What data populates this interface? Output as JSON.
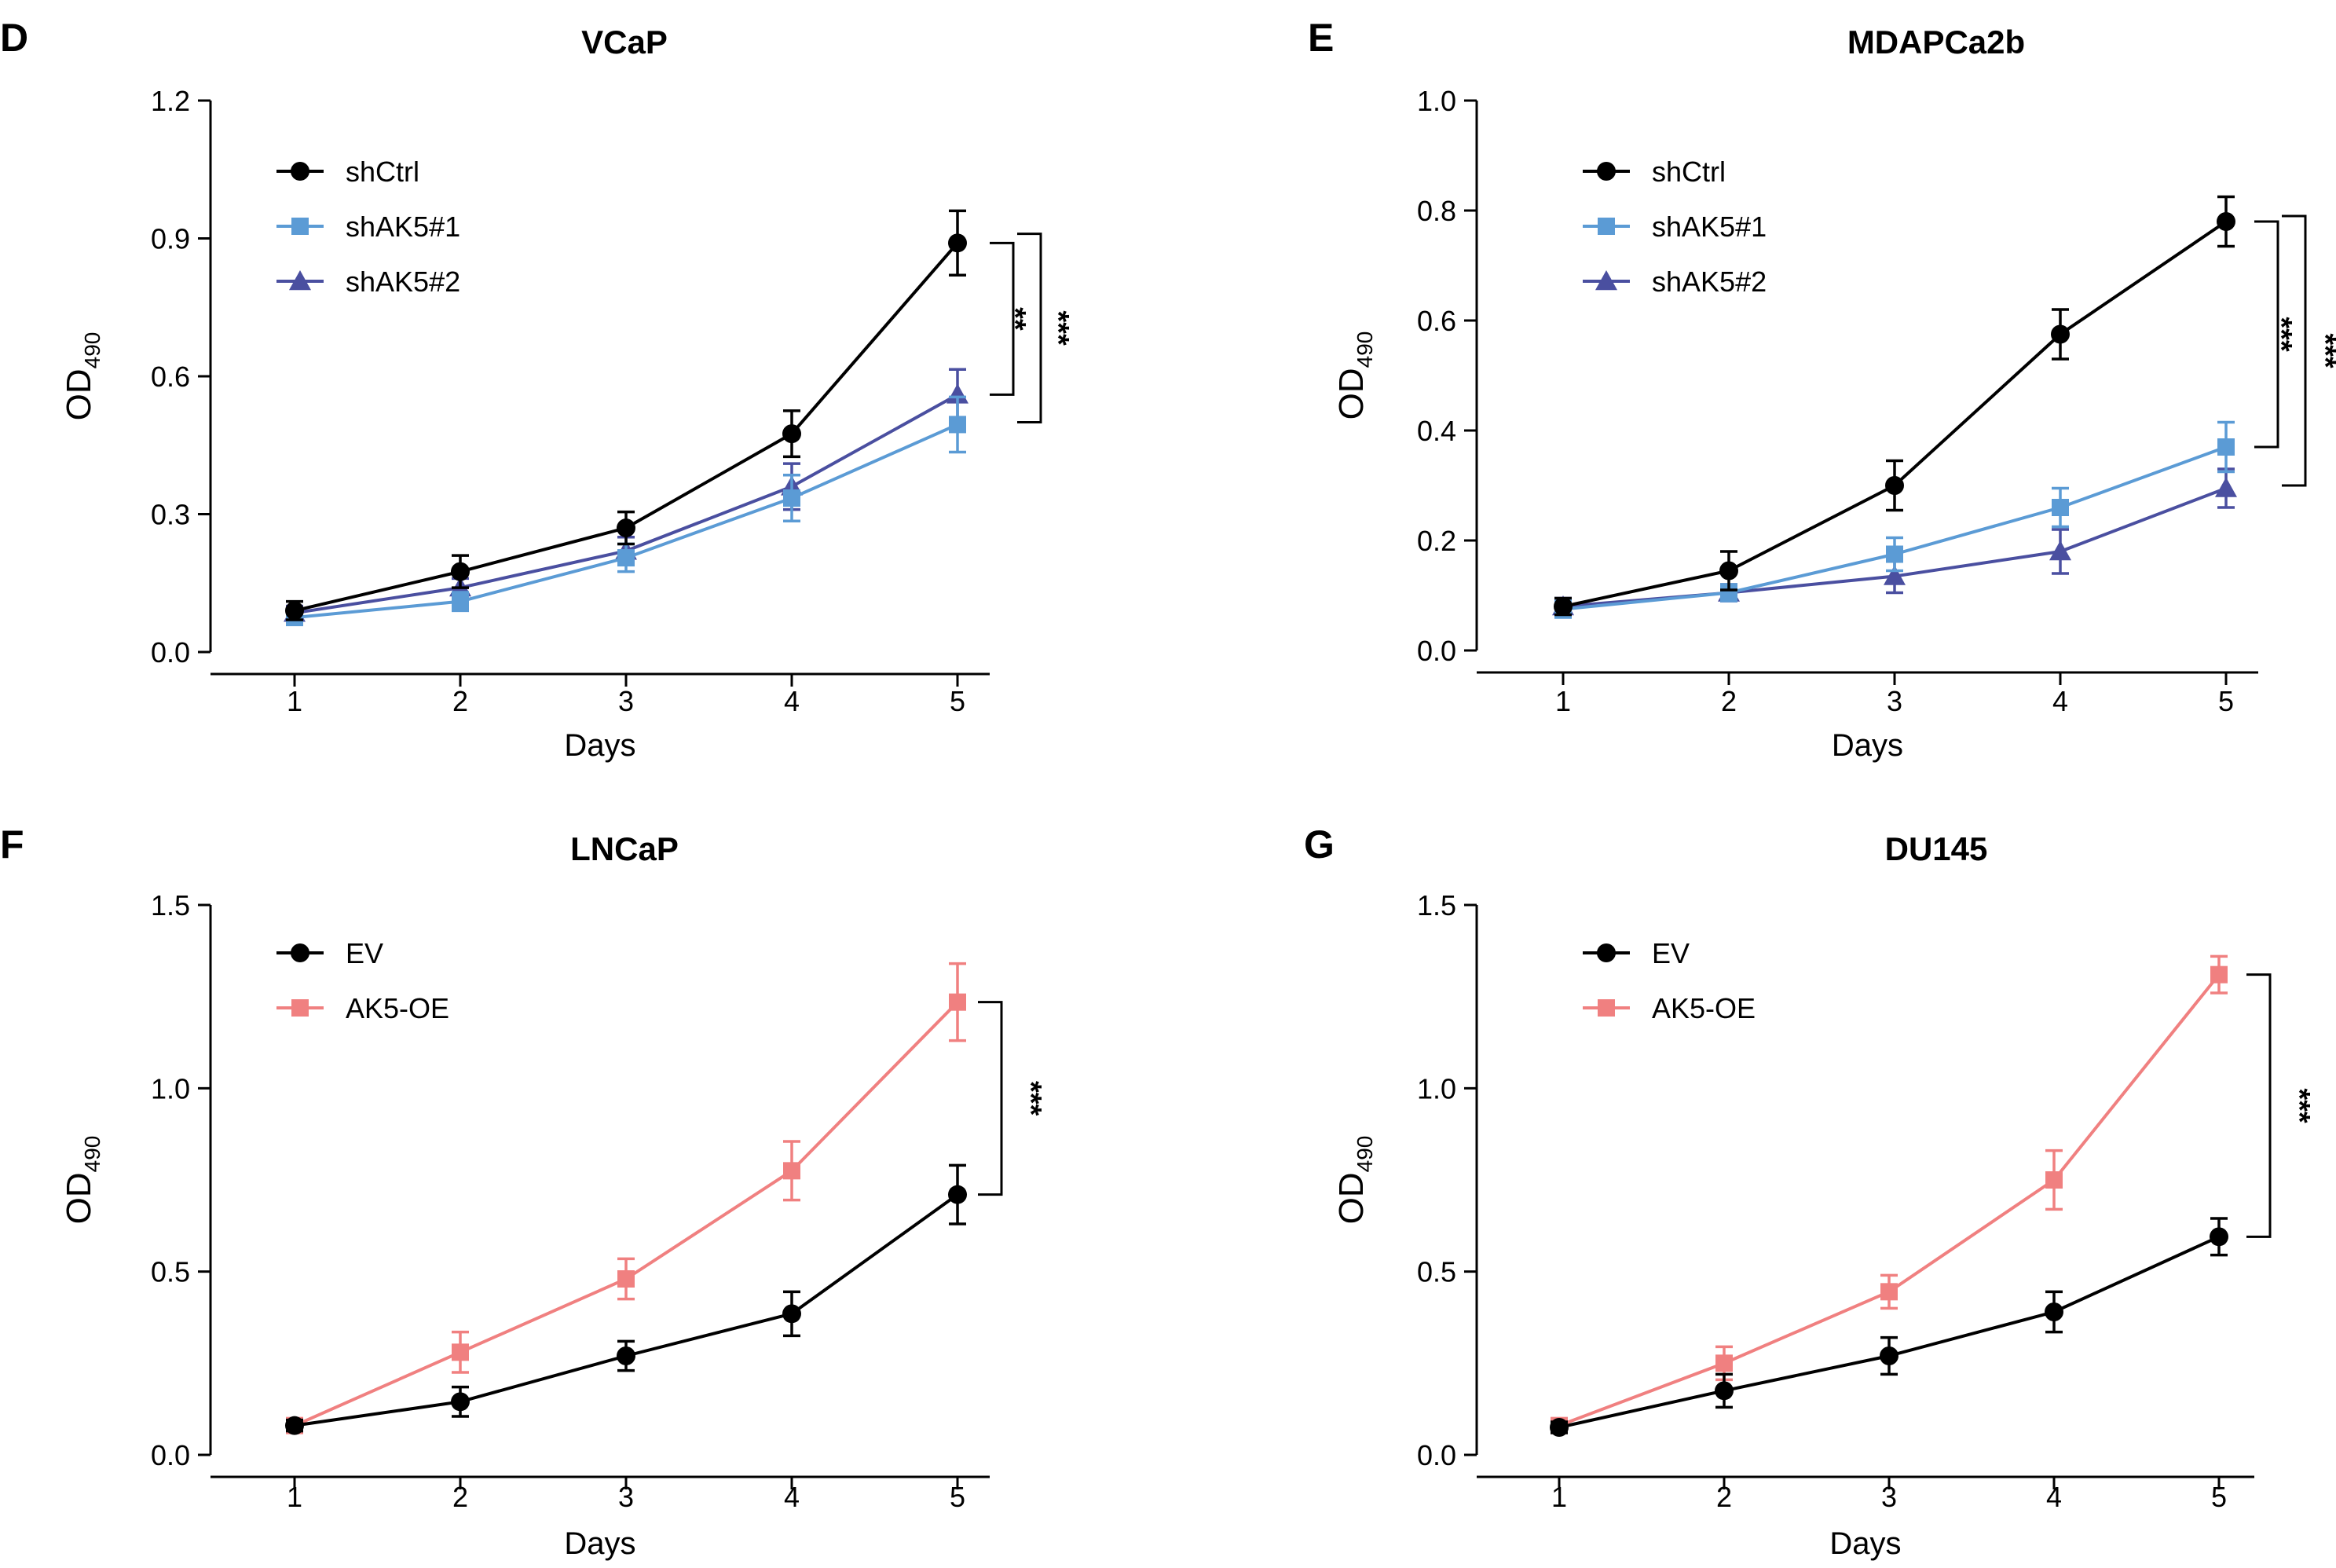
{
  "chart_data": [
    {
      "panel": "D",
      "type": "line",
      "title": "VCaP",
      "xlabel": "Days",
      "ylabel": "OD",
      "ylabel_sub": "490",
      "x": [
        1,
        2,
        3,
        4,
        5
      ],
      "ylim": [
        0,
        1.2
      ],
      "yticks": [
        "0.0",
        "0.3",
        "0.6",
        "0.9",
        "1.2"
      ],
      "ytick_values": [
        0,
        0.3,
        0.6,
        0.9,
        1.2
      ],
      "series": [
        {
          "name": "shCtrl",
          "color": "#000000",
          "marker": "circle",
          "values": [
            0.09,
            0.175,
            0.27,
            0.475,
            0.89
          ],
          "errors": [
            0.02,
            0.035,
            0.035,
            0.05,
            0.07
          ]
        },
        {
          "name": "shAK5#1",
          "color": "#5b9bd5",
          "marker": "square",
          "values": [
            0.075,
            0.11,
            0.205,
            0.335,
            0.495
          ],
          "errors": [
            0.015,
            0.02,
            0.03,
            0.05,
            0.06
          ]
        },
        {
          "name": "shAK5#2",
          "color": "#4a4fa0",
          "marker": "triangle",
          "values": [
            0.085,
            0.14,
            0.22,
            0.36,
            0.56
          ],
          "errors": [
            0.015,
            0.02,
            0.03,
            0.05,
            0.055
          ]
        }
      ],
      "significance": [
        {
          "label": "**",
          "from": 0.89,
          "to": 0.56
        },
        {
          "label": "***",
          "from": 0.91,
          "to": 0.5
        }
      ]
    },
    {
      "panel": "E",
      "type": "line",
      "title": "MDAPCa2b",
      "xlabel": "Days",
      "ylabel": "OD",
      "ylabel_sub": "490",
      "x": [
        1,
        2,
        3,
        4,
        5
      ],
      "ylim": [
        0,
        1.0
      ],
      "yticks": [
        "0.0",
        "0.2",
        "0.4",
        "0.6",
        "0.8",
        "1.0"
      ],
      "ytick_values": [
        0,
        0.2,
        0.4,
        0.6,
        0.8,
        1.0
      ],
      "series": [
        {
          "name": "shCtrl",
          "color": "#000000",
          "marker": "circle",
          "values": [
            0.08,
            0.145,
            0.3,
            0.575,
            0.78
          ],
          "errors": [
            0.015,
            0.035,
            0.045,
            0.045,
            0.045
          ]
        },
        {
          "name": "shAK5#1",
          "color": "#5b9bd5",
          "marker": "square",
          "values": [
            0.075,
            0.105,
            0.175,
            0.26,
            0.37
          ],
          "errors": [
            0.015,
            0.015,
            0.03,
            0.035,
            0.045
          ]
        },
        {
          "name": "shAK5#2",
          "color": "#4a4fa0",
          "marker": "triangle",
          "values": [
            0.08,
            0.105,
            0.135,
            0.18,
            0.295
          ],
          "errors": [
            0.015,
            0.015,
            0.03,
            0.04,
            0.035
          ]
        }
      ],
      "significance": [
        {
          "label": "***",
          "from": 0.78,
          "to": 0.37
        },
        {
          "label": "***",
          "from": 0.79,
          "to": 0.3
        }
      ]
    },
    {
      "panel": "F",
      "type": "line",
      "title": "LNCaP",
      "xlabel": "Days",
      "ylabel": "OD",
      "ylabel_sub": "490",
      "x": [
        1,
        2,
        3,
        4,
        5
      ],
      "ylim": [
        0,
        1.5
      ],
      "yticks": [
        "0.0",
        "0.5",
        "1.0",
        "1.5"
      ],
      "ytick_values": [
        0,
        0.5,
        1.0,
        1.5
      ],
      "series": [
        {
          "name": "EV",
          "color": "#000000",
          "marker": "circle",
          "values": [
            0.08,
            0.145,
            0.27,
            0.385,
            0.71
          ],
          "errors": [
            0.015,
            0.04,
            0.04,
            0.06,
            0.08
          ]
        },
        {
          "name": "AK5-OE",
          "color": "#f08080",
          "marker": "square",
          "values": [
            0.08,
            0.28,
            0.48,
            0.775,
            1.235
          ],
          "errors": [
            0.015,
            0.055,
            0.055,
            0.08,
            0.105
          ]
        }
      ],
      "significance": [
        {
          "label": "***",
          "from": 1.235,
          "to": 0.71
        }
      ]
    },
    {
      "panel": "G",
      "type": "line",
      "title": "DU145",
      "xlabel": "Days",
      "ylabel": "OD",
      "ylabel_sub": "490",
      "x": [
        1,
        2,
        3,
        4,
        5
      ],
      "ylim": [
        0,
        1.5
      ],
      "yticks": [
        "0.0",
        "0.5",
        "1.0",
        "1.5"
      ],
      "ytick_values": [
        0,
        0.5,
        1.0,
        1.5
      ],
      "series": [
        {
          "name": "EV",
          "color": "#000000",
          "marker": "circle",
          "values": [
            0.075,
            0.175,
            0.27,
            0.39,
            0.595
          ],
          "errors": [
            0.015,
            0.045,
            0.05,
            0.055,
            0.05
          ]
        },
        {
          "name": "AK5-OE",
          "color": "#f08080",
          "marker": "square",
          "values": [
            0.08,
            0.25,
            0.445,
            0.75,
            1.31
          ],
          "errors": [
            0.015,
            0.045,
            0.045,
            0.08,
            0.05
          ]
        }
      ],
      "significance": [
        {
          "label": "***",
          "from": 1.31,
          "to": 0.595
        }
      ]
    }
  ]
}
